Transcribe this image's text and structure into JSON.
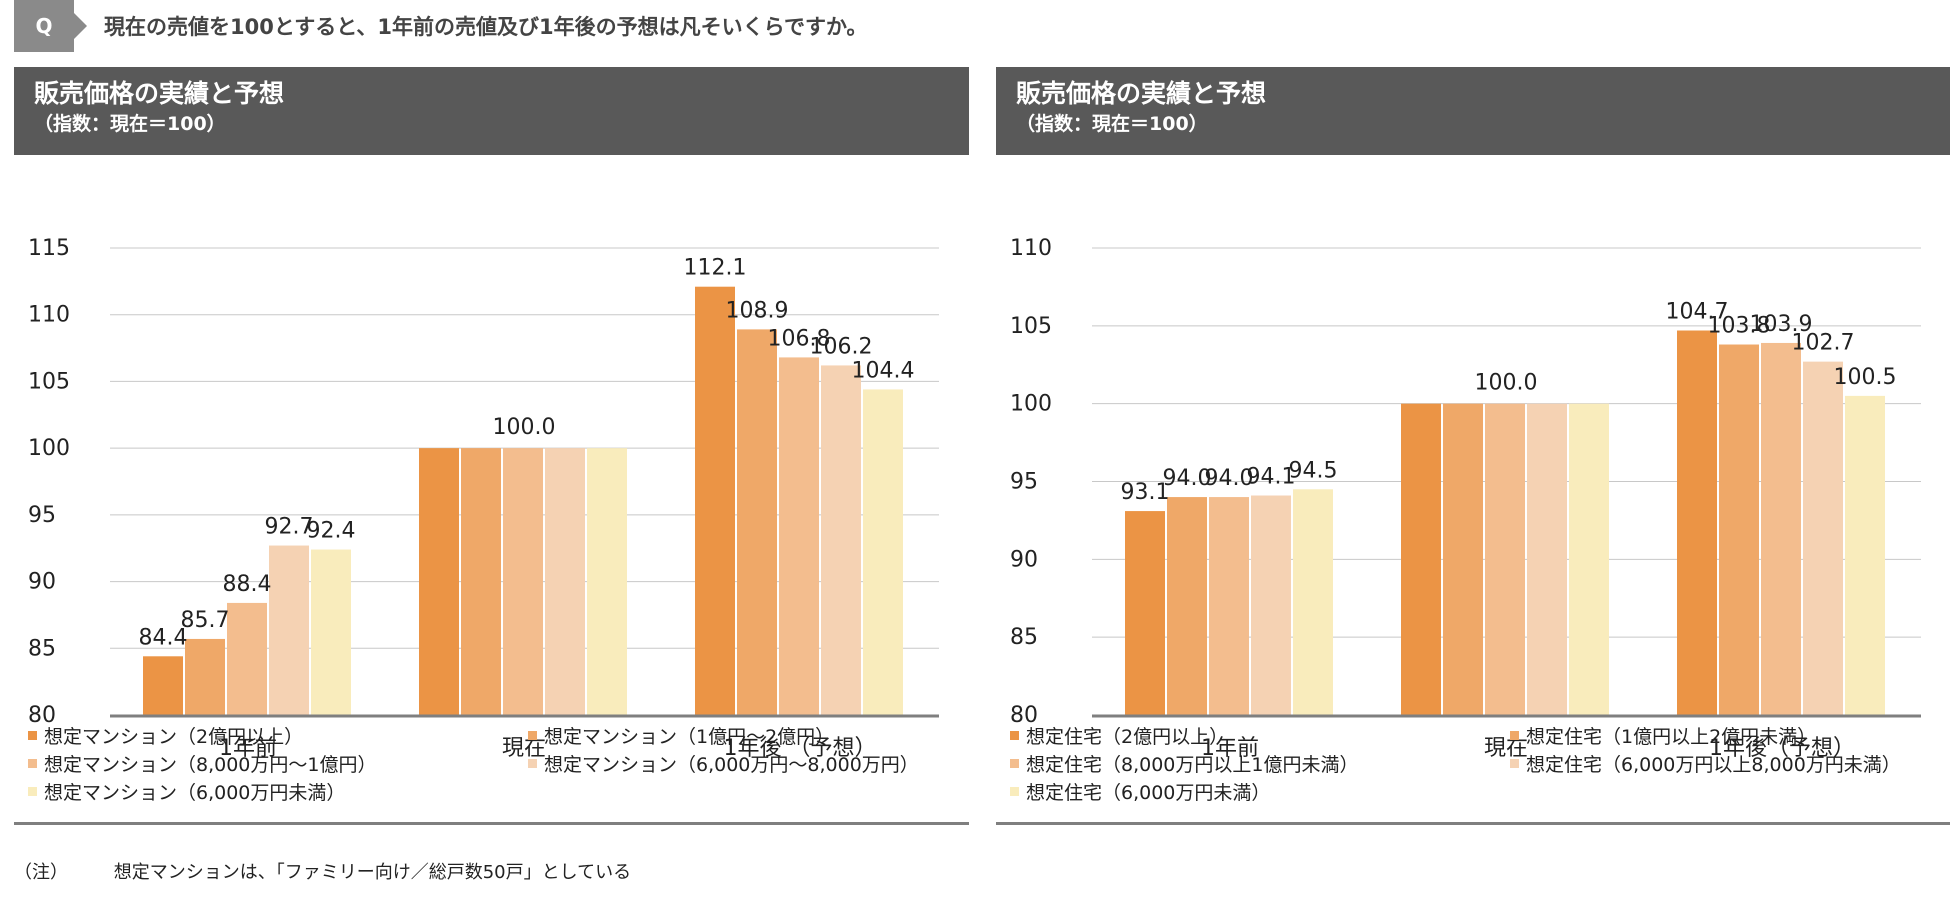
{
  "question": {
    "badge": "Q",
    "text": "現在の売値を100とすると、1年前の売値及び1年後の予想は凡そいくらですか。"
  },
  "note": {
    "label": "（注）",
    "text": "想定マンションは、「ファミリー向け／総戸数50戸」としている"
  },
  "colors": [
    "#eb9445",
    "#efa868",
    "#f3bd8e",
    "#f5d2b3",
    "#f9ecbc"
  ],
  "chart_data": [
    {
      "type": "bar",
      "title": "販売価格の実績と予想",
      "subtitle": "（指数：現在＝100）",
      "categories": [
        "1年前",
        "現在",
        "1年後 （予想）"
      ],
      "ylim": [
        80,
        115
      ],
      "yticks": [
        80,
        85,
        90,
        95,
        100,
        105,
        110,
        115
      ],
      "grid": true,
      "series": [
        {
          "name": "想定マンション（2億円以上）",
          "values": [
            84.4,
            100.0,
            112.1
          ]
        },
        {
          "name": "想定マンション（1億円～2億円）",
          "values": [
            85.7,
            100.0,
            108.9
          ]
        },
        {
          "name": "想定マンション（8,000万円～1億円）",
          "values": [
            88.4,
            100.0,
            106.8
          ]
        },
        {
          "name": "想定マンション（6,000万円～8,000万円）",
          "values": [
            92.7,
            100.0,
            106.2
          ]
        },
        {
          "name": "想定マンション（6,000万円未満）",
          "values": [
            92.4,
            100.0,
            104.4
          ]
        }
      ],
      "group_labels": [
        [
          "84.4",
          "85.7",
          "88.4",
          "92.7",
          "92.4"
        ],
        [
          "100.0"
        ],
        [
          "112.1",
          "108.9",
          "106.8",
          "106.2",
          "104.4"
        ]
      ]
    },
    {
      "type": "bar",
      "title": "販売価格の実績と予想",
      "subtitle": "（指数：現在＝100）",
      "categories": [
        "1年前",
        "現在",
        "1年後（予想）"
      ],
      "ylim": [
        80,
        110
      ],
      "yticks": [
        80,
        85,
        90,
        95,
        100,
        105,
        110
      ],
      "grid": true,
      "series": [
        {
          "name": "想定住宅（2億円以上）",
          "values": [
            93.1,
            100.0,
            104.7
          ]
        },
        {
          "name": "想定住宅（1億円以上2億円未満）",
          "values": [
            94.0,
            100.0,
            103.8
          ]
        },
        {
          "name": "想定住宅（8,000万円以上1億円未満）",
          "values": [
            94.0,
            100.0,
            103.9
          ]
        },
        {
          "name": "想定住宅（6,000万円以上8,000万円未満）",
          "values": [
            94.1,
            100.0,
            102.7
          ]
        },
        {
          "name": "想定住宅（6,000万円未満）",
          "values": [
            94.5,
            100.0,
            100.5
          ]
        }
      ],
      "group_labels": [
        [
          "93.1",
          "94.0",
          "94.0",
          "94.1",
          "94.5"
        ],
        [
          "100.0"
        ],
        [
          "104.7",
          "103.8",
          "103.9",
          "102.7",
          "100.5"
        ]
      ]
    }
  ]
}
